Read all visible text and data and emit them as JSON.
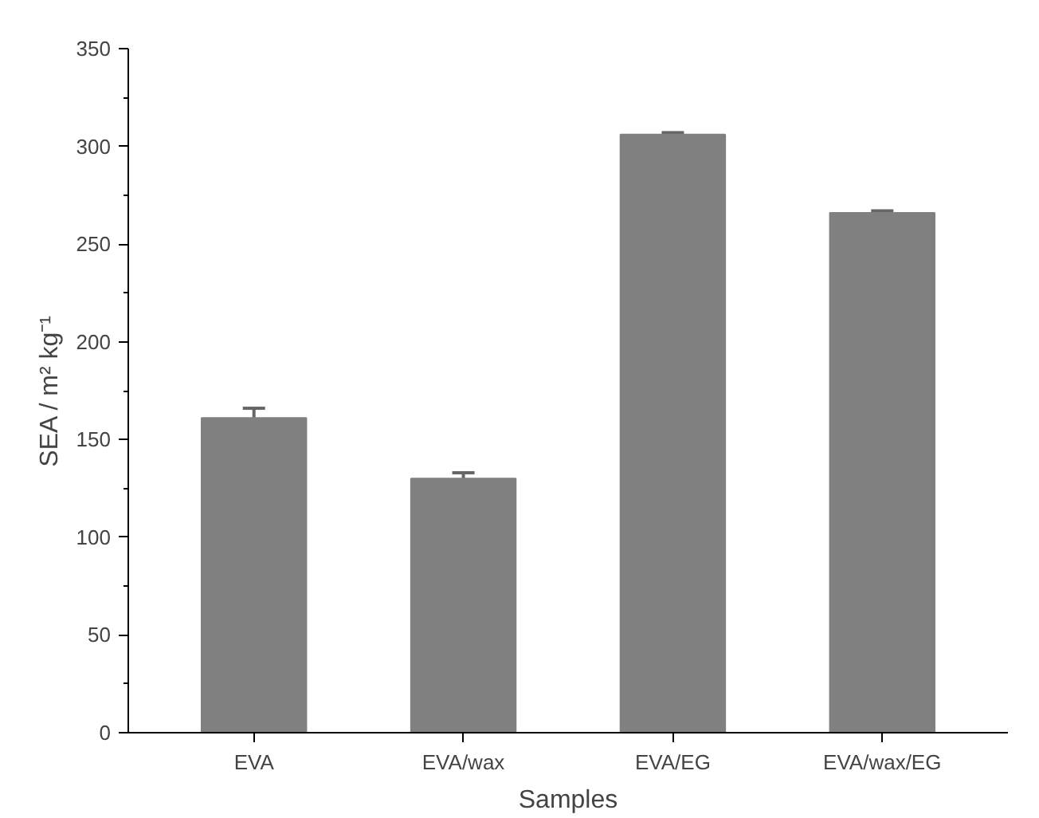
{
  "chart_data": {
    "type": "bar",
    "xlabel": "Samples",
    "ylabel": "SEA / m² kg⁻¹",
    "categories": [
      "EVA",
      "EVA/wax",
      "EVA/EG",
      "EVA/wax/EG"
    ],
    "values": [
      161,
      130,
      306,
      266
    ],
    "color": "#808080",
    "errors": [
      [
        161,
        166
      ],
      [
        130,
        133
      ],
      [
        306,
        307
      ],
      [
        266,
        267
      ]
    ],
    "ylim": [
      0,
      350
    ],
    "yticks": [
      0,
      50,
      100,
      150,
      200,
      250,
      300,
      350
    ],
    "grid": false
  }
}
